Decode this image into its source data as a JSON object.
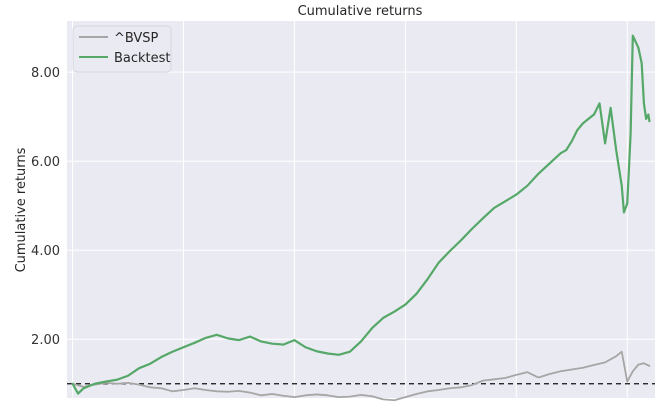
{
  "chart_data": {
    "type": "line",
    "title": "Cumulative returns",
    "xlabel": "",
    "ylabel": "Cumulative returns",
    "ylim": [
      0.68,
      9.15
    ],
    "xlim": [
      -5,
      525
    ],
    "yticks": [
      2.0,
      4.0,
      6.0,
      8.0
    ],
    "ytick_labels": [
      "2.00",
      "4.00",
      "6.00",
      "8.00"
    ],
    "grid": true,
    "legend": "top-left",
    "background": "#eaeaf2",
    "baseline": 1.0,
    "series": [
      {
        "name": "^BVSP",
        "color": "#a6a6a6",
        "x": [
          0,
          10,
          20,
          30,
          40,
          50,
          60,
          70,
          80,
          90,
          100,
          110,
          120,
          130,
          140,
          150,
          160,
          170,
          180,
          190,
          200,
          210,
          220,
          230,
          240,
          250,
          260,
          270,
          280,
          290,
          300,
          310,
          320,
          330,
          340,
          350,
          360,
          370,
          380,
          390,
          400,
          410,
          420,
          430,
          440,
          450,
          460,
          470,
          480,
          490,
          495,
          500,
          505,
          510,
          515,
          520
        ],
        "values": [
          1.0,
          0.93,
          0.98,
          1.02,
          1.0,
          1.02,
          0.98,
          0.92,
          0.9,
          0.83,
          0.86,
          0.9,
          0.86,
          0.83,
          0.82,
          0.84,
          0.8,
          0.74,
          0.77,
          0.73,
          0.7,
          0.74,
          0.76,
          0.74,
          0.7,
          0.71,
          0.75,
          0.72,
          0.65,
          0.63,
          0.7,
          0.77,
          0.83,
          0.86,
          0.9,
          0.92,
          0.97,
          1.07,
          1.1,
          1.13,
          1.2,
          1.26,
          1.14,
          1.22,
          1.28,
          1.32,
          1.36,
          1.42,
          1.48,
          1.62,
          1.72,
          1.05,
          1.28,
          1.43,
          1.46,
          1.4
        ]
      },
      {
        "name": "Backtest",
        "color": "#55a868",
        "x": [
          0,
          5,
          10,
          15,
          20,
          30,
          40,
          50,
          60,
          70,
          80,
          90,
          100,
          110,
          120,
          130,
          140,
          150,
          160,
          170,
          180,
          190,
          200,
          210,
          220,
          230,
          240,
          250,
          260,
          270,
          280,
          290,
          300,
          310,
          320,
          330,
          340,
          350,
          360,
          370,
          380,
          390,
          400,
          410,
          420,
          430,
          440,
          445,
          450,
          455,
          460,
          465,
          470,
          475,
          480,
          485,
          490,
          495,
          497,
          500,
          503,
          505,
          510,
          513,
          515,
          517,
          519,
          520
        ],
        "values": [
          1.0,
          0.78,
          0.9,
          0.95,
          1.0,
          1.05,
          1.09,
          1.18,
          1.35,
          1.45,
          1.6,
          1.72,
          1.82,
          1.92,
          2.03,
          2.1,
          2.02,
          1.98,
          2.06,
          1.95,
          1.9,
          1.88,
          1.98,
          1.82,
          1.73,
          1.68,
          1.65,
          1.72,
          1.95,
          2.25,
          2.48,
          2.62,
          2.78,
          3.02,
          3.35,
          3.72,
          3.98,
          4.22,
          4.48,
          4.72,
          4.95,
          5.1,
          5.25,
          5.45,
          5.72,
          5.95,
          6.18,
          6.25,
          6.45,
          6.7,
          6.85,
          6.95,
          7.05,
          7.3,
          6.4,
          7.2,
          6.25,
          5.45,
          4.85,
          5.05,
          6.6,
          8.82,
          8.55,
          8.2,
          7.3,
          6.95,
          7.05,
          6.9
        ]
      }
    ]
  }
}
